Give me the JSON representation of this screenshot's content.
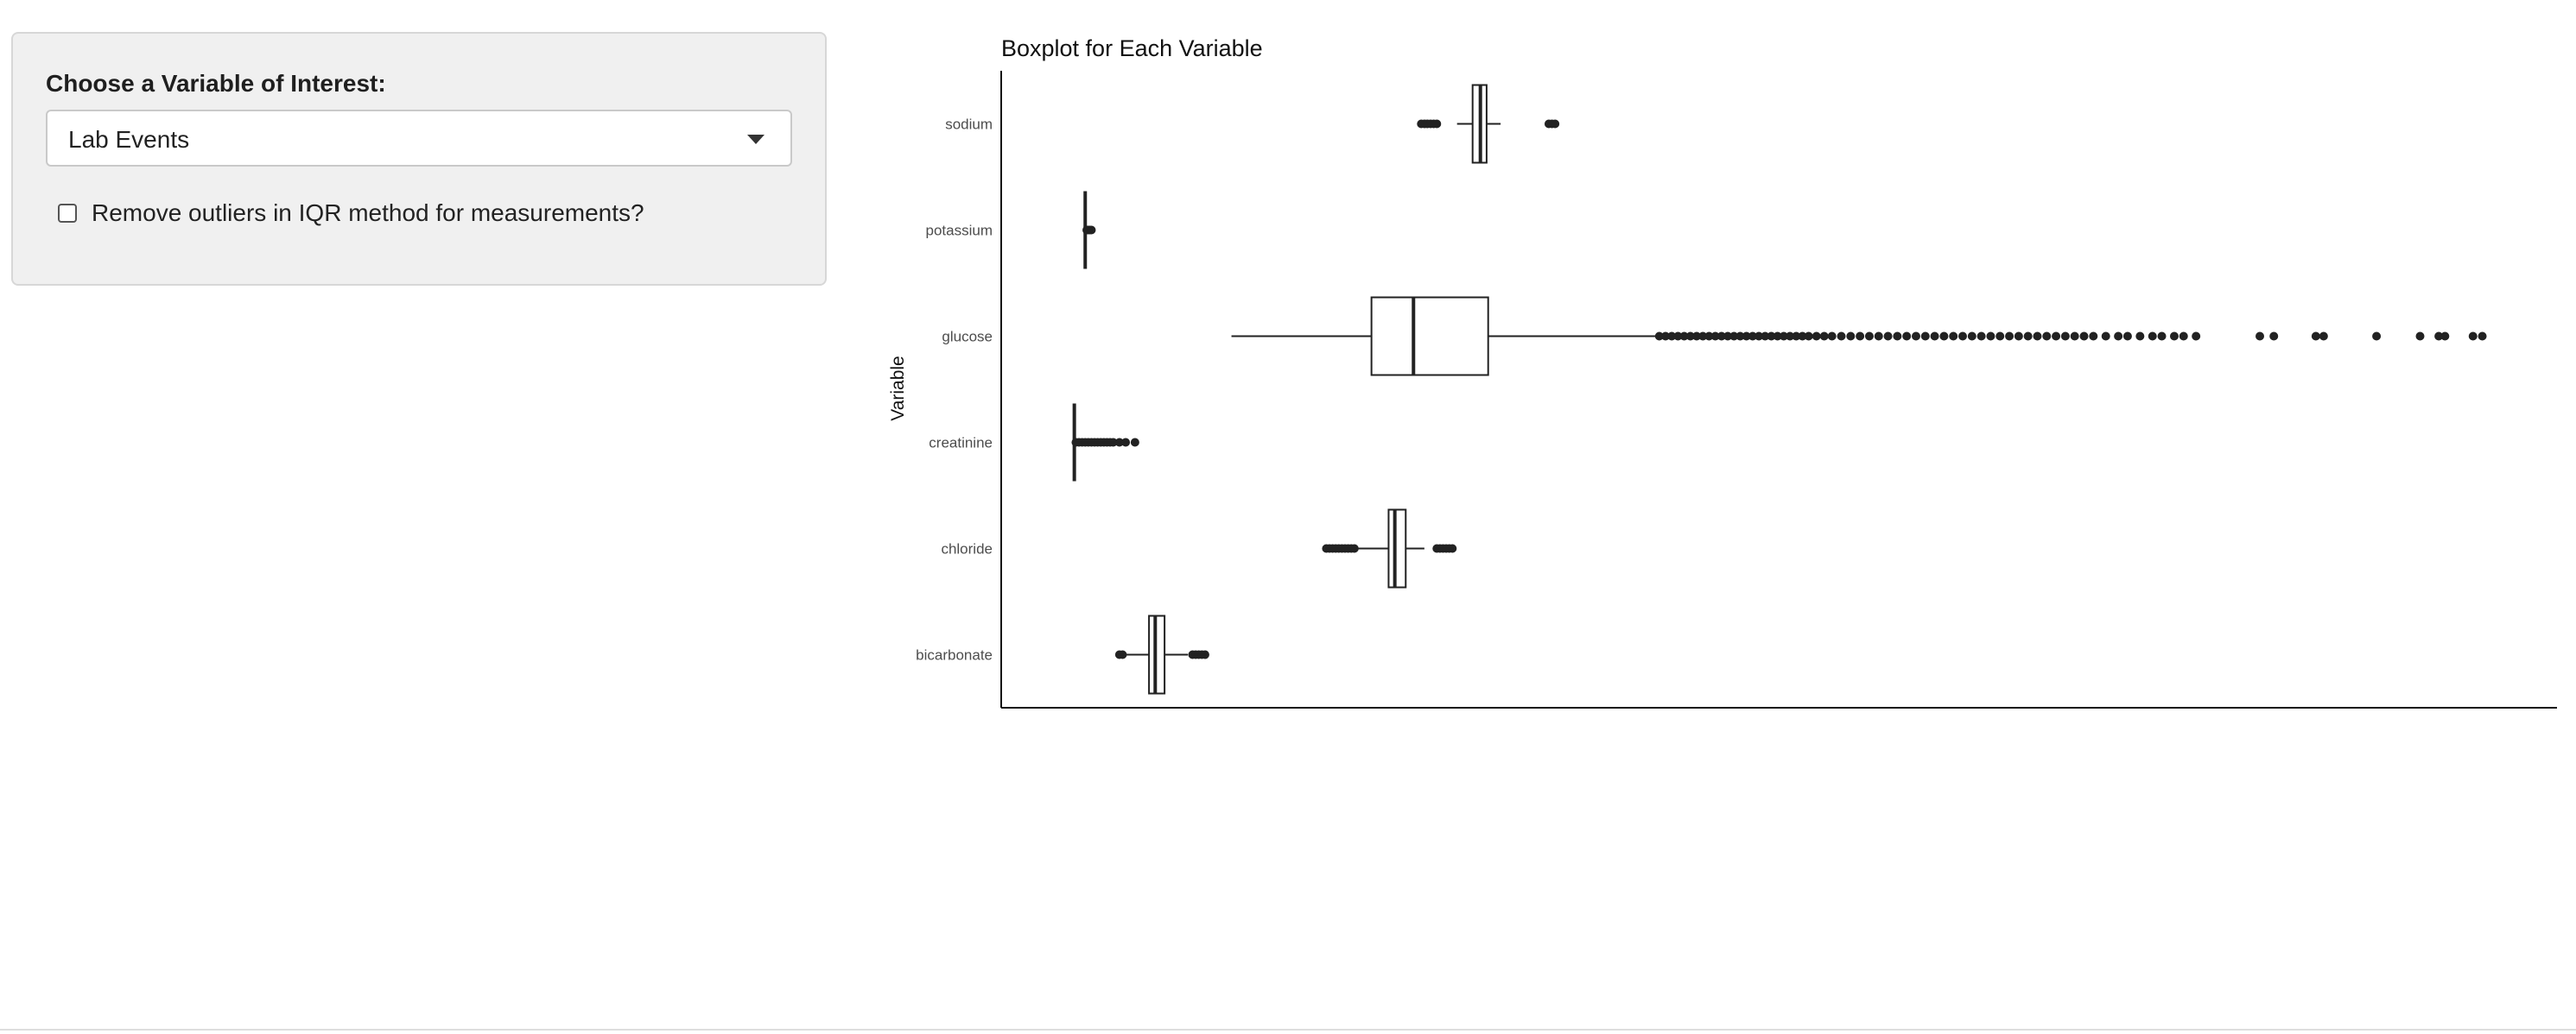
{
  "sidebar": {
    "variable_label": "Choose a Variable of Interest:",
    "variable_select": {
      "selected": "Lab Events"
    },
    "outlier_checkbox": {
      "label": "Remove outliers in IQR method for measurements?",
      "checked": false
    }
  },
  "icons": {
    "dropdown": "chevron-down-icon",
    "checkbox": "checkbox-icon"
  },
  "chart_data": {
    "type": "boxplot",
    "title": "Boxplot for Each Variable",
    "xlabel": "",
    "ylabel": "Variable",
    "x_tick_labels_shown": false,
    "grid": false,
    "legend": "none",
    "xlim": [
      0,
      1000
    ],
    "categories": [
      "sodium",
      "potassium",
      "glucose",
      "creatinine",
      "chloride",
      "bicarbonate"
    ],
    "boxes": [
      {
        "category": "sodium",
        "lower_whisker": 293,
        "q1": 303,
        "median": 308,
        "q3": 312,
        "upper_whisker": 321,
        "outliers": [
          270,
          272,
          274,
          276,
          278,
          280,
          352,
          354,
          356
        ]
      },
      {
        "category": "potassium",
        "lower_whisker": 54,
        "q1": 54,
        "median": 54,
        "q3": 54,
        "upper_whisker": 55,
        "outliers": [
          55,
          56,
          57,
          58
        ]
      },
      {
        "category": "glucose",
        "lower_whisker": 148,
        "q1": 238,
        "median": 265,
        "q3": 313,
        "upper_whisker": 423,
        "outliers": [
          423,
          427,
          431,
          435,
          439,
          443,
          447,
          451,
          455,
          459,
          463,
          467,
          471,
          475,
          479,
          483,
          487,
          491,
          495,
          499,
          503,
          507,
          511,
          515,
          519,
          524,
          529,
          534,
          540,
          546,
          552,
          558,
          564,
          570,
          576,
          582,
          588,
          594,
          600,
          606,
          612,
          618,
          624,
          630,
          636,
          642,
          648,
          654,
          660,
          666,
          672,
          678,
          684,
          690,
          696,
          702,
          710,
          718,
          724,
          732,
          740,
          746,
          754,
          760,
          768,
          809,
          818,
          845,
          850,
          884,
          912,
          924,
          928,
          946,
          952
        ]
      },
      {
        "category": "creatinine",
        "lower_whisker": 47,
        "q1": 47,
        "median": 47,
        "q3": 47,
        "upper_whisker": 48,
        "outliers": [
          48,
          50,
          52,
          54,
          56,
          58,
          60,
          62,
          64,
          66,
          68,
          70,
          72,
          76,
          80,
          86
        ]
      },
      {
        "category": "chloride",
        "lower_whisker": 228,
        "q1": 249,
        "median": 253,
        "q3": 260,
        "upper_whisker": 272,
        "outliers": [
          209,
          211,
          213,
          215,
          217,
          219,
          221,
          223,
          225,
          227,
          280,
          282,
          284,
          286,
          288,
          290
        ]
      },
      {
        "category": "bicarbonate",
        "lower_whisker": 76,
        "q1": 95,
        "median": 99,
        "q3": 105,
        "upper_whisker": 120,
        "outliers": [
          76,
          78,
          123,
          125,
          127,
          129,
          131
        ]
      }
    ]
  }
}
